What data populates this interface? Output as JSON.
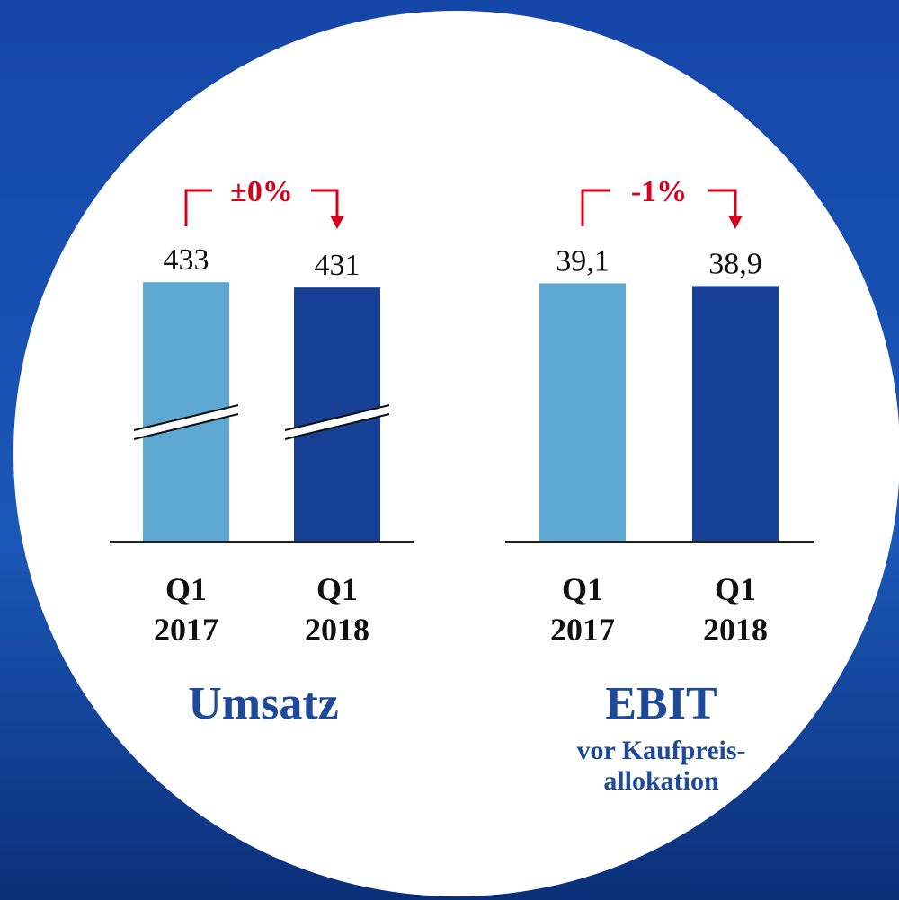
{
  "chart_data": [
    {
      "type": "bar",
      "title": "Umsatz",
      "annotation": "±0%",
      "categories": [
        [
          "Q1",
          "2017"
        ],
        [
          "Q1",
          "2018"
        ]
      ],
      "values": [
        433,
        431
      ],
      "colors": [
        "#5fa8d3",
        "#173f96"
      ],
      "ylim": [
        337,
        450
      ],
      "axis_break": true
    },
    {
      "type": "bar",
      "title": "EBIT",
      "subtitle": [
        "vor Kaufpreis-",
        "allokation"
      ],
      "annotation": "-1%",
      "categories": [
        [
          "Q1",
          "2017"
        ],
        [
          "Q1",
          "2018"
        ]
      ],
      "values": [
        39.1,
        38.9
      ],
      "value_labels": [
        "39,1",
        "38,9"
      ],
      "colors": [
        "#5fa8d3",
        "#173f96"
      ],
      "ylim": [
        19.9,
        42.6
      ],
      "axis_break": false
    }
  ]
}
